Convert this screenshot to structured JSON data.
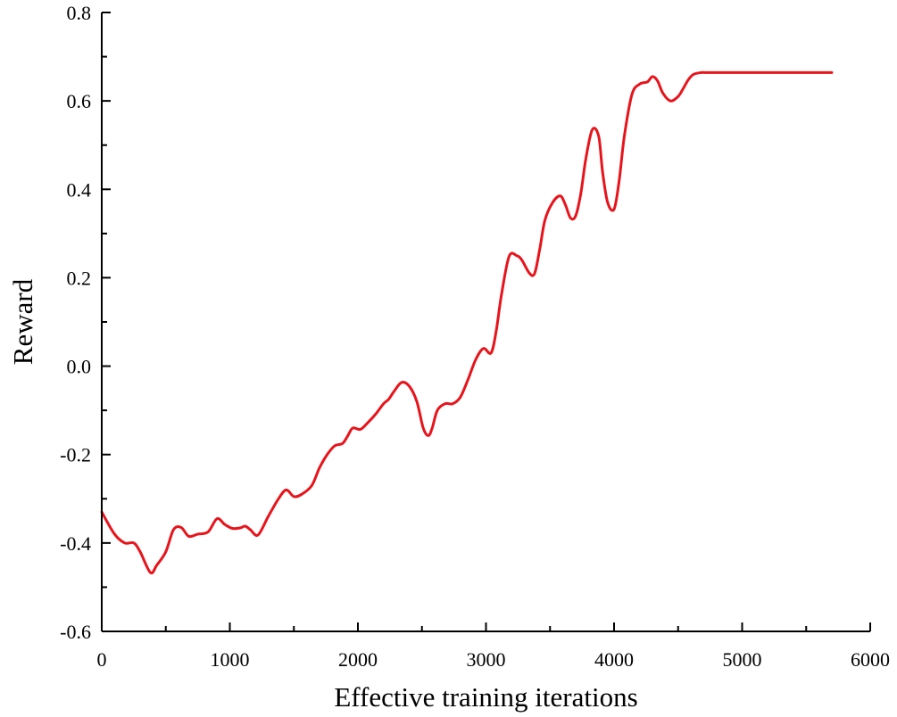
{
  "chart_data": {
    "type": "line",
    "title": "",
    "xlabel": "Effective training iterations",
    "ylabel": "Reward",
    "xlim": [
      0,
      6000
    ],
    "ylim": [
      -0.6,
      0.8
    ],
    "x_ticks": [
      0,
      1000,
      2000,
      3000,
      4000,
      5000,
      6000
    ],
    "x_tick_labels": [
      "0",
      "1000",
      "2000",
      "3000",
      "4000",
      "5000",
      "6000"
    ],
    "y_ticks": [
      -0.6,
      -0.4,
      -0.2,
      0.0,
      0.2,
      0.4,
      0.6,
      0.8
    ],
    "y_tick_labels": [
      "-0.6",
      "-0.4",
      "-0.2",
      "0.0",
      "0.2",
      "0.4",
      "0.6",
      "0.8"
    ],
    "grid": false,
    "legend": "none",
    "series": [
      {
        "color": "#e8141c",
        "x": [
          0,
          100,
          180,
          250,
          300,
          380,
          430,
          500,
          560,
          620,
          680,
          750,
          830,
          900,
          960,
          1020,
          1080,
          1120,
          1160,
          1220,
          1300,
          1380,
          1440,
          1500,
          1560,
          1640,
          1700,
          1760,
          1820,
          1880,
          1920,
          1960,
          2020,
          2080,
          2140,
          2200,
          2240,
          2280,
          2340,
          2400,
          2460,
          2510,
          2550,
          2580,
          2620,
          2680,
          2740,
          2800,
          2860,
          2920,
          2980,
          3040,
          3080,
          3120,
          3180,
          3240,
          3280,
          3340,
          3380,
          3420,
          3460,
          3520,
          3580,
          3620,
          3660,
          3700,
          3740,
          3780,
          3830,
          3880,
          3910,
          3950,
          4000,
          4040,
          4080,
          4140,
          4200,
          4260,
          4300,
          4340,
          4380,
          4440,
          4500,
          4540,
          4580,
          4620,
          4680,
          4720,
          4760,
          4800,
          5000,
          5400,
          5700
        ],
        "y": [
          -0.33,
          -0.38,
          -0.4,
          -0.4,
          -0.42,
          -0.467,
          -0.45,
          -0.42,
          -0.37,
          -0.365,
          -0.385,
          -0.38,
          -0.375,
          -0.345,
          -0.358,
          -0.367,
          -0.366,
          -0.362,
          -0.37,
          -0.382,
          -0.34,
          -0.3,
          -0.28,
          -0.295,
          -0.29,
          -0.27,
          -0.23,
          -0.2,
          -0.18,
          -0.175,
          -0.158,
          -0.14,
          -0.143,
          -0.127,
          -0.108,
          -0.085,
          -0.075,
          -0.058,
          -0.037,
          -0.045,
          -0.08,
          -0.14,
          -0.157,
          -0.14,
          -0.1,
          -0.085,
          -0.085,
          -0.07,
          -0.03,
          0.015,
          0.04,
          0.03,
          0.08,
          0.16,
          0.248,
          0.25,
          0.24,
          0.21,
          0.21,
          0.265,
          0.33,
          0.37,
          0.385,
          0.365,
          0.335,
          0.34,
          0.39,
          0.47,
          0.535,
          0.52,
          0.44,
          0.37,
          0.355,
          0.42,
          0.52,
          0.615,
          0.638,
          0.643,
          0.655,
          0.645,
          0.618,
          0.6,
          0.61,
          0.628,
          0.648,
          0.66,
          0.664,
          0.664,
          0.664,
          0.664,
          0.664,
          0.664,
          0.664
        ]
      }
    ]
  }
}
